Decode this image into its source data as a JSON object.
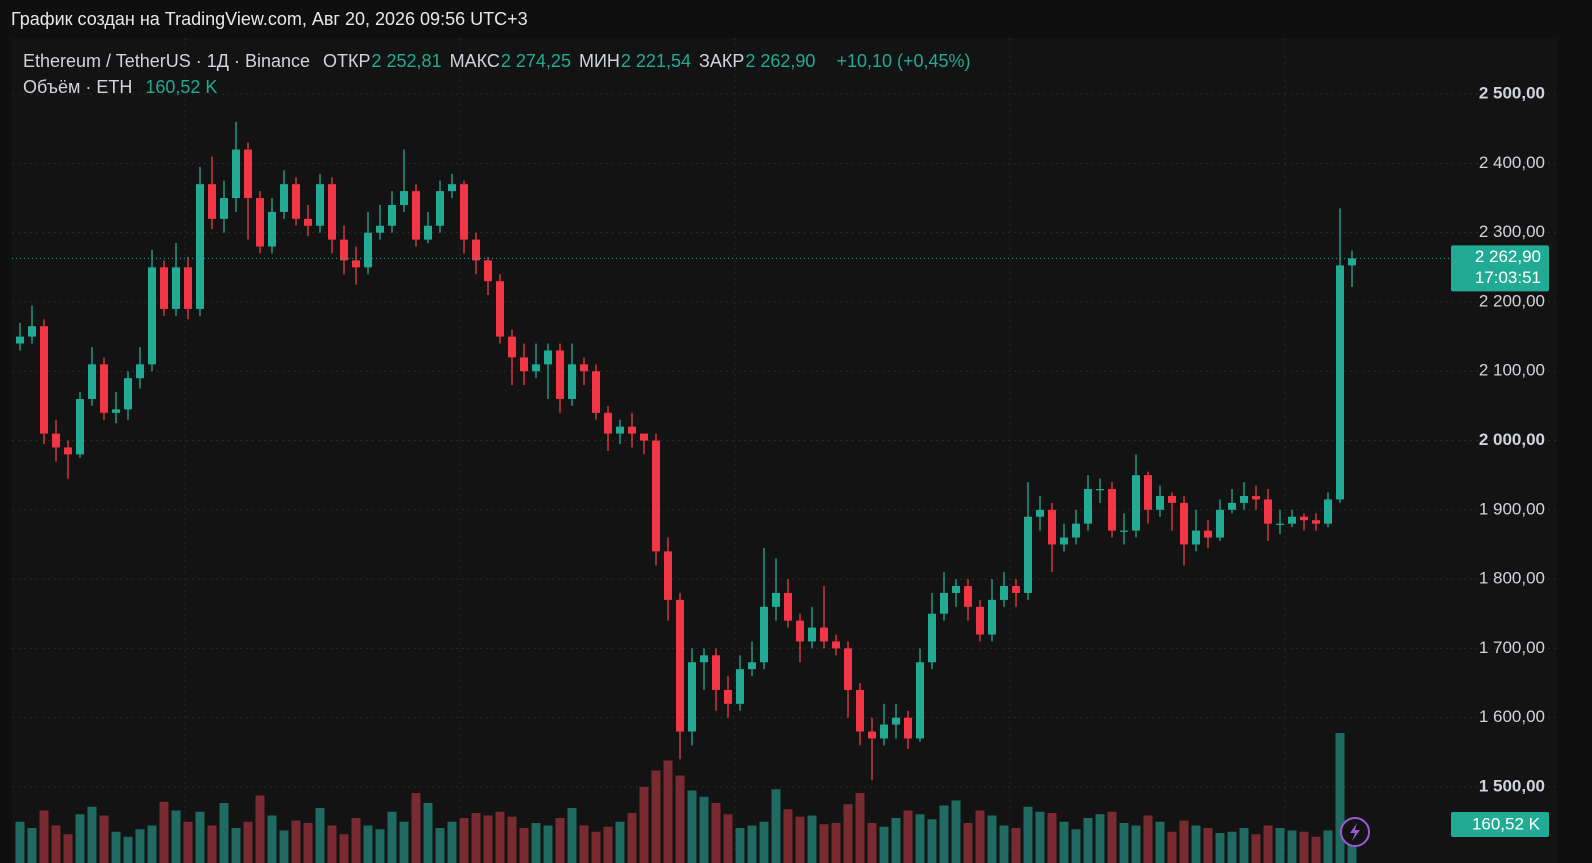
{
  "chart_data": {
    "type": "candlestick",
    "source": "График создан на TradingView.com, Авг 20, 2026 09:56 UTC+3",
    "title": "Ethereum / TetherUS · 1Д · Binance",
    "legend": [
      {
        "label": "ОТКР",
        "value": "2 252,81"
      },
      {
        "label": "МАКС",
        "value": "2 274,25"
      },
      {
        "label": "МИН",
        "value": "2 221,54"
      },
      {
        "label": "ЗАКР",
        "value": "2 262,90"
      }
    ],
    "change": "+10,10 (+0,45%)",
    "up_color": "#22ab94",
    "down_color": "#f23645",
    "open": [
      2140,
      2150,
      2165,
      2010,
      1990,
      1980,
      2060,
      2110,
      2040,
      2045,
      2090,
      2110,
      2250,
      2190,
      2250,
      2190,
      2370,
      2320,
      2350,
      2420,
      2350,
      2280,
      2330,
      2370,
      2320,
      2310,
      2370,
      2290,
      2260,
      2250,
      2300,
      2310,
      2340,
      2360,
      2290,
      2310,
      2360,
      2370,
      2290,
      2260,
      2230,
      2150,
      2120,
      2100,
      2110,
      2130,
      2060,
      2110,
      2100,
      2040,
      2010,
      2020,
      2010,
      2000,
      1840,
      1770,
      1580,
      1680,
      1690,
      1640,
      1620,
      1670,
      1680,
      1760,
      1780,
      1740,
      1710,
      1730,
      1710,
      1700,
      1640,
      1580,
      1570,
      1590,
      1600,
      1570,
      1680,
      1750,
      1780,
      1790,
      1760,
      1720,
      1770,
      1790,
      1780,
      1890,
      1900,
      1850,
      1860,
      1880,
      1930,
      1930,
      1870,
      1870,
      1950,
      1900,
      1920,
      1910,
      1850,
      1870,
      1860,
      1900,
      1910,
      1920,
      1915,
      1880,
      1880,
      1890,
      1885,
      1880,
      1915,
      2252.81
    ],
    "high": [
      2170,
      2195,
      2175,
      2030,
      2000,
      2070,
      2135,
      2120,
      2070,
      2100,
      2135,
      2275,
      2260,
      2285,
      2265,
      2395,
      2410,
      2375,
      2460,
      2430,
      2360,
      2350,
      2390,
      2380,
      2340,
      2385,
      2380,
      2310,
      2280,
      2330,
      2340,
      2360,
      2420,
      2370,
      2330,
      2375,
      2385,
      2375,
      2300,
      2265,
      2240,
      2160,
      2140,
      2140,
      2140,
      2140,
      2140,
      2120,
      2110,
      2050,
      2030,
      2040,
      2010,
      2010,
      1860,
      1780,
      1700,
      1700,
      1700,
      1660,
      1690,
      1710,
      1845,
      1830,
      1800,
      1750,
      1760,
      1790,
      1720,
      1710,
      1650,
      1600,
      1620,
      1620,
      1610,
      1700,
      1780,
      1810,
      1800,
      1800,
      1770,
      1800,
      1810,
      1800,
      1940,
      1920,
      1910,
      1880,
      1900,
      1950,
      1945,
      1940,
      1895,
      1980,
      1955,
      1935,
      1925,
      1920,
      1900,
      1885,
      1915,
      1930,
      1940,
      1935,
      1930,
      1900,
      1900,
      1895,
      1895,
      1925,
      2335,
      2274.25
    ],
    "low": [
      2130,
      2140,
      1995,
      1970,
      1945,
      1975,
      2050,
      2030,
      2025,
      2030,
      2075,
      2100,
      2180,
      2180,
      2175,
      2180,
      2305,
      2300,
      2330,
      2290,
      2270,
      2270,
      2320,
      2310,
      2295,
      2300,
      2270,
      2240,
      2225,
      2240,
      2290,
      2300,
      2330,
      2280,
      2285,
      2300,
      2350,
      2270,
      2240,
      2210,
      2140,
      2080,
      2080,
      2090,
      2060,
      2040,
      2050,
      2080,
      2030,
      1985,
      1995,
      1990,
      1980,
      1820,
      1740,
      1540,
      1560,
      1640,
      1610,
      1600,
      1610,
      1660,
      1670,
      1740,
      1730,
      1680,
      1700,
      1700,
      1690,
      1600,
      1560,
      1510,
      1560,
      1570,
      1555,
      1565,
      1670,
      1740,
      1760,
      1740,
      1710,
      1710,
      1760,
      1760,
      1770,
      1870,
      1810,
      1840,
      1850,
      1870,
      1910,
      1860,
      1850,
      1860,
      1880,
      1890,
      1870,
      1820,
      1840,
      1845,
      1855,
      1895,
      1900,
      1900,
      1855,
      1865,
      1875,
      1870,
      1870,
      1875,
      1910,
      2221.54
    ],
    "close": [
      2150,
      2165,
      2010,
      1990,
      1980,
      2060,
      2110,
      2040,
      2045,
      2090,
      2110,
      2250,
      2190,
      2250,
      2190,
      2370,
      2320,
      2350,
      2420,
      2350,
      2280,
      2330,
      2370,
      2320,
      2310,
      2370,
      2290,
      2260,
      2250,
      2300,
      2310,
      2340,
      2360,
      2290,
      2310,
      2360,
      2370,
      2290,
      2260,
      2230,
      2150,
      2120,
      2100,
      2110,
      2130,
      2060,
      2110,
      2100,
      2040,
      2010,
      2020,
      2010,
      2000,
      1840,
      1770,
      1580,
      1680,
      1690,
      1640,
      1620,
      1670,
      1680,
      1760,
      1780,
      1740,
      1710,
      1730,
      1710,
      1700,
      1640,
      1580,
      1570,
      1590,
      1600,
      1570,
      1680,
      1750,
      1780,
      1790,
      1760,
      1720,
      1770,
      1790,
      1780,
      1890,
      1900,
      1850,
      1860,
      1880,
      1930,
      1930,
      1870,
      1870,
      1950,
      1900,
      1920,
      1910,
      1850,
      1870,
      1860,
      1900,
      1910,
      1920,
      1915,
      1880,
      1880,
      1890,
      1885,
      1880,
      1915,
      2252.81,
      2262.9
    ],
    "volume": {
      "name": "Объём · ETH",
      "value_label": "160,52 K",
      "values": [
        330,
        280,
        420,
        300,
        230,
        390,
        450,
        380,
        250,
        210,
        270,
        300,
        490,
        420,
        330,
        410,
        300,
        480,
        280,
        330,
        540,
        380,
        260,
        340,
        320,
        440,
        300,
        230,
        360,
        300,
        270,
        410,
        330,
        560,
        480,
        280,
        330,
        360,
        400,
        380,
        410,
        370,
        280,
        320,
        300,
        360,
        440,
        300,
        250,
        290,
        330,
        400,
        610,
        740,
        820,
        700,
        580,
        530,
        480,
        390,
        280,
        300,
        330,
        590,
        430,
        370,
        380,
        310,
        320,
        470,
        560,
        320,
        290,
        360,
        420,
        390,
        350,
        460,
        500,
        320,
        420,
        380,
        300,
        280,
        450,
        410,
        400,
        330,
        270,
        360,
        390,
        410,
        320,
        300,
        380,
        330,
        250,
        340,
        300,
        280,
        240,
        250,
        280,
        230,
        300,
        280,
        260,
        250,
        210,
        260,
        1040,
        160.52
      ]
    },
    "last_price": {
      "value": 2262.9,
      "label": "2 262,90",
      "countdown": "17:03:51"
    },
    "ylim": [
      1409,
      2581
    ],
    "yticks": [
      {
        "value": 1500,
        "label": "1 500,00"
      },
      {
        "value": 1600,
        "label": "1 600,00"
      },
      {
        "value": 1700,
        "label": "1 700,00"
      },
      {
        "value": 1800,
        "label": "1 800,00"
      },
      {
        "value": 1900,
        "label": "1 900,00"
      },
      {
        "value": 2000,
        "label": "2 000,00"
      },
      {
        "value": 2100,
        "label": "2 100,00"
      },
      {
        "value": 2200,
        "label": "2 200,00"
      },
      {
        "value": 2300,
        "label": "2 300,00"
      },
      {
        "value": 2400,
        "label": "2 400,00"
      },
      {
        "value": 2500,
        "label": "2 500,00"
      }
    ],
    "grid": true
  }
}
